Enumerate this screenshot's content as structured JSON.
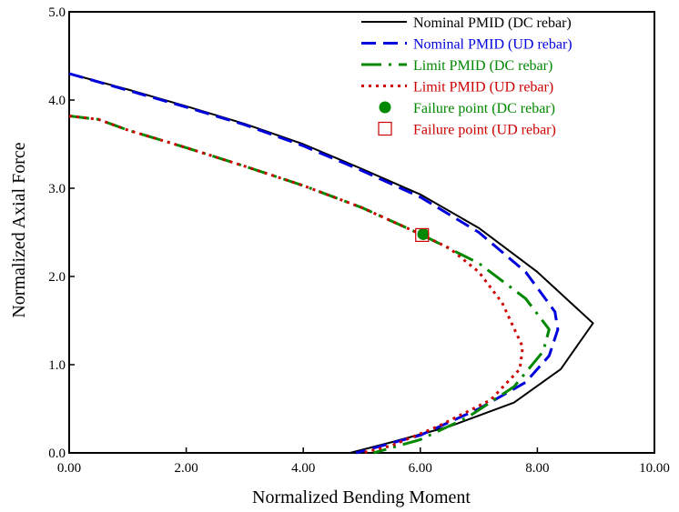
{
  "chart_data": {
    "type": "line",
    "xlabel": "Normalized Bending Moment",
    "ylabel": "Normalized Axial Force",
    "xlim": [
      0,
      10
    ],
    "ylim": [
      0,
      5
    ],
    "x_ticks": [
      "0.00",
      "2.00",
      "4.00",
      "6.00",
      "8.00",
      "10.00"
    ],
    "y_ticks": [
      "0.0",
      "1.0",
      "2.0",
      "3.0",
      "4.0",
      "5.0"
    ],
    "grid": false,
    "legend_position": "top-right",
    "series": [
      {
        "name": "Nominal PMID (DC rebar)",
        "color": "#000000",
        "style": "solid",
        "points": [
          [
            0,
            4.3
          ],
          [
            1.0,
            4.12
          ],
          [
            2.0,
            3.93
          ],
          [
            3.0,
            3.73
          ],
          [
            4.0,
            3.5
          ],
          [
            5.0,
            3.22
          ],
          [
            6.0,
            2.93
          ],
          [
            7.0,
            2.55
          ],
          [
            8.0,
            2.05
          ],
          [
            8.95,
            1.47
          ],
          [
            8.4,
            0.95
          ],
          [
            7.6,
            0.57
          ],
          [
            6.5,
            0.3
          ],
          [
            5.5,
            0.12
          ],
          [
            4.8,
            0.0
          ]
        ]
      },
      {
        "name": "Nominal PMID (UD rebar)",
        "color": "#0000dd",
        "style": "dashed",
        "points": [
          [
            0,
            4.3
          ],
          [
            1.0,
            4.11
          ],
          [
            2.0,
            3.92
          ],
          [
            3.0,
            3.72
          ],
          [
            4.0,
            3.48
          ],
          [
            5.0,
            3.2
          ],
          [
            6.0,
            2.9
          ],
          [
            7.0,
            2.5
          ],
          [
            7.8,
            2.05
          ],
          [
            8.3,
            1.6
          ],
          [
            8.35,
            1.4
          ],
          [
            8.2,
            1.1
          ],
          [
            7.8,
            0.8
          ],
          [
            7.0,
            0.5
          ],
          [
            6.0,
            0.2
          ],
          [
            4.9,
            0.0
          ]
        ]
      },
      {
        "name": "Limit PMID (DC rebar)",
        "color": "#008800",
        "style": "dashdot",
        "points": [
          [
            0,
            3.82
          ],
          [
            0.5,
            3.78
          ],
          [
            1.0,
            3.66
          ],
          [
            2.0,
            3.46
          ],
          [
            3.0,
            3.25
          ],
          [
            4.0,
            3.03
          ],
          [
            5.0,
            2.78
          ],
          [
            6.0,
            2.48
          ],
          [
            7.0,
            2.15
          ],
          [
            7.8,
            1.75
          ],
          [
            8.2,
            1.4
          ],
          [
            8.1,
            1.15
          ],
          [
            7.6,
            0.75
          ],
          [
            6.8,
            0.4
          ],
          [
            6.0,
            0.15
          ],
          [
            5.2,
            0.0
          ]
        ]
      },
      {
        "name": "Limit PMID (UD rebar)",
        "color": "#cc0000",
        "style": "dotted",
        "points": [
          [
            0,
            3.82
          ],
          [
            0.5,
            3.78
          ],
          [
            1.0,
            3.66
          ],
          [
            2.0,
            3.46
          ],
          [
            3.0,
            3.25
          ],
          [
            4.0,
            3.03
          ],
          [
            5.0,
            2.78
          ],
          [
            6.0,
            2.48
          ],
          [
            6.5,
            2.32
          ],
          [
            7.0,
            2.05
          ],
          [
            7.4,
            1.7
          ],
          [
            7.75,
            1.2
          ],
          [
            7.7,
            0.95
          ],
          [
            7.2,
            0.6
          ],
          [
            6.3,
            0.3
          ],
          [
            5.5,
            0.08
          ],
          [
            5.0,
            0.0
          ]
        ]
      }
    ],
    "markers": [
      {
        "name": "Failure point (DC rebar)",
        "shape": "filled-circle",
        "color": "#008800",
        "x": 6.05,
        "y": 2.48
      },
      {
        "name": "Failure point (UD rebar)",
        "shape": "open-square",
        "color": "#cc0000",
        "x": 6.03,
        "y": 2.47
      }
    ]
  }
}
